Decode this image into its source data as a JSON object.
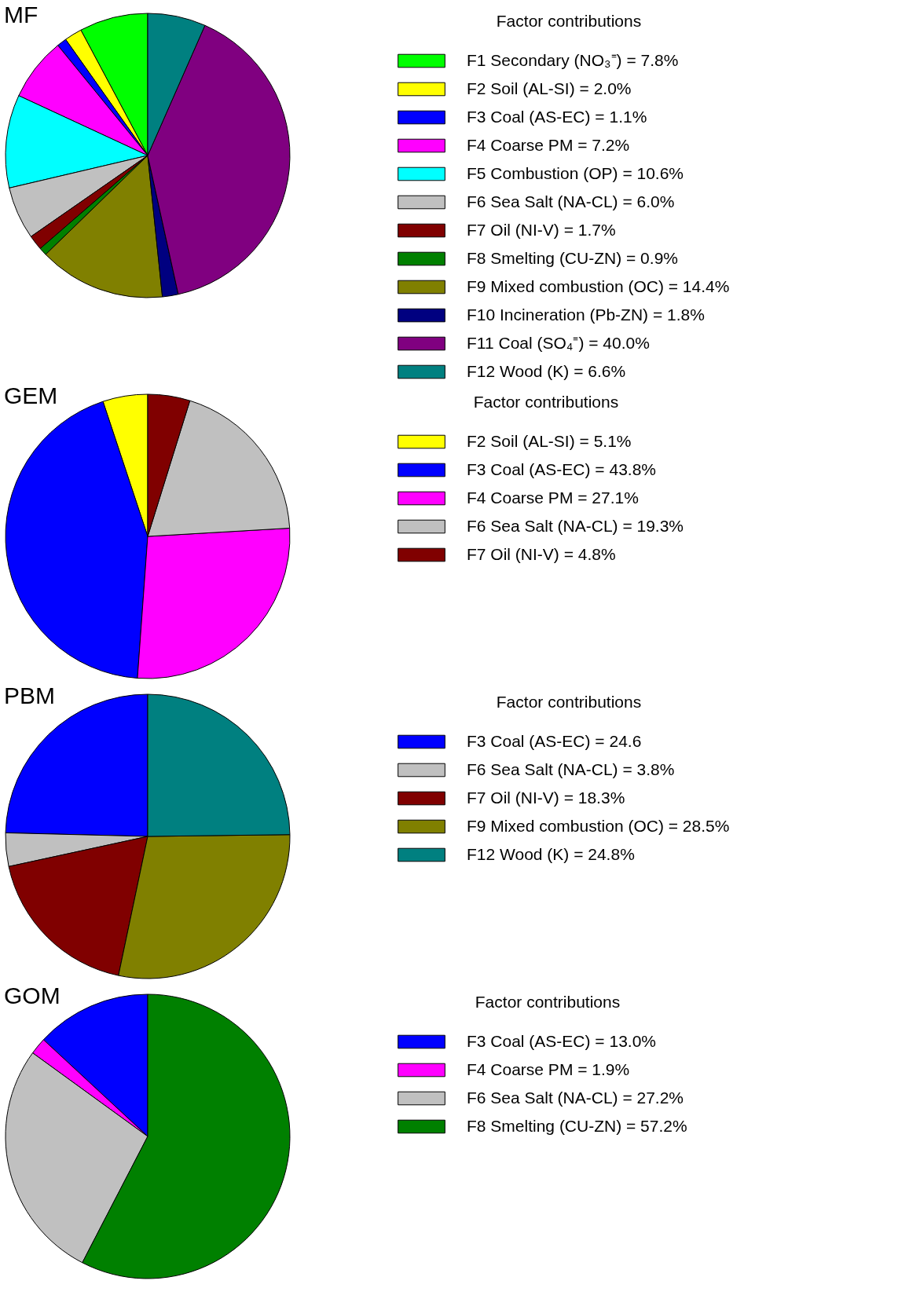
{
  "chart_data": [
    {
      "type": "pie",
      "title": "MF",
      "legend_title": "Factor contributions",
      "legend": "right",
      "categories": [
        "F1 Secondary (NO₃⁼) = 7.8%",
        "F2 Soil (AL-SI) = 2.0%",
        "F3 Coal (AS-EC) = 1.1%",
        "F4 Coarse PM = 7.2%",
        "F5 Combustion (OP) = 10.6%",
        "F6 Sea Salt (NA-CL) = 6.0%",
        "F7 Oil (NI-V) = 1.7%",
        "F8 Smelting (CU-ZN) = 0.9%",
        "F9 Mixed combustion (OC) = 14.4%",
        "F10 Incineration (Pb-ZN) = 1.8%",
        "F11 Coal (SO₄⁼) = 40.0%",
        "F12 Wood (K) = 6.6%"
      ],
      "values": [
        7.8,
        2.0,
        1.1,
        7.2,
        10.6,
        6.0,
        1.7,
        0.9,
        14.4,
        1.8,
        40.0,
        6.6
      ],
      "colors": [
        "#00ff00",
        "#ffff00",
        "#0000ff",
        "#ff00ff",
        "#00ffff",
        "#c0c0c0",
        "#800000",
        "#008000",
        "#808000",
        "#000080",
        "#800080",
        "#008080"
      ]
    },
    {
      "type": "pie",
      "title": "GEM",
      "legend_title": "Factor contributions",
      "legend": "right",
      "categories": [
        "F2 Soil (AL-SI) = 5.1%",
        "F3 Coal (AS-EC) = 43.8%",
        "F4 Coarse PM = 27.1%",
        "F6 Sea Salt (NA-CL) = 19.3%",
        "F7 Oil (NI-V) = 4.8%"
      ],
      "values": [
        5.1,
        43.8,
        27.1,
        19.3,
        4.8
      ],
      "colors": [
        "#ffff00",
        "#0000ff",
        "#ff00ff",
        "#c0c0c0",
        "#800000"
      ]
    },
    {
      "type": "pie",
      "title": "PBM",
      "legend_title": "Factor contributions",
      "legend": "right",
      "categories": [
        "F3 Coal (AS-EC) = 24.6",
        "F6 Sea Salt (NA-CL) = 3.8%",
        "F7 Oil (NI-V) = 18.3%",
        "F9 Mixed combustion (OC) = 28.5%",
        "F12 Wood (K) = 24.8%"
      ],
      "values": [
        24.6,
        3.8,
        18.3,
        28.5,
        24.8
      ],
      "colors": [
        "#0000ff",
        "#c0c0c0",
        "#800000",
        "#808000",
        "#008080"
      ]
    },
    {
      "type": "pie",
      "title": "GOM",
      "legend_title": "Factor contributions",
      "legend": "right",
      "categories": [
        "F3 Coal (AS-EC) = 13.0%",
        "F4 Coarse PM = 1.9%",
        "F6 Sea Salt (NA-CL) = 27.2%",
        "F8 Smelting (CU-ZN) = 57.2%"
      ],
      "values": [
        13.0,
        1.9,
        27.2,
        57.2
      ],
      "colors": [
        "#0000ff",
        "#ff00ff",
        "#c0c0c0",
        "#008000"
      ]
    }
  ]
}
